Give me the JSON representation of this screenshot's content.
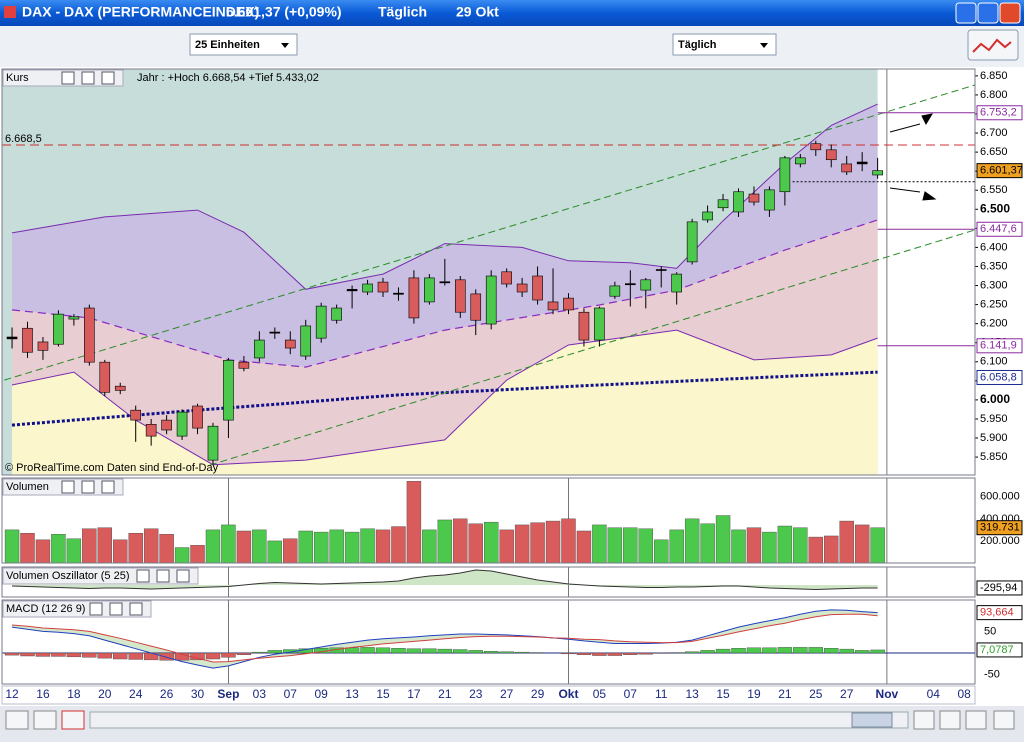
{
  "window": {
    "title": "DAX - DAX (PERFORMANCEINDEX)",
    "quote": "6.601,37 (+0,09%)",
    "period": "Täglich",
    "date": "29 Okt"
  },
  "toolbar": {
    "units": "25 Einheiten",
    "interval": "Täglich"
  },
  "chart_data": [
    {
      "type": "candlestick",
      "title": "Kurs",
      "subtitle": "Jahr : +Hoch 6.668,54 +Tief 5.433,02",
      "annotation": "© ProRealTime.com  Daten sind End-of-Day",
      "colors": {
        "up": "#4cc84c",
        "down": "#d85c5c"
      },
      "candles": [
        [
          6160,
          6190,
          6135,
          6165
        ],
        [
          6188,
          6205,
          6110,
          6125
        ],
        [
          6152,
          6165,
          6105,
          6130
        ],
        [
          6146,
          6235,
          6140,
          6225
        ],
        [
          6212,
          6225,
          6195,
          6218
        ],
        [
          6241,
          6250,
          6090,
          6099
        ],
        [
          6099,
          6105,
          6010,
          6020
        ],
        [
          6036,
          6045,
          6015,
          6025
        ],
        [
          5973,
          5985,
          5890,
          5947
        ],
        [
          5936,
          5950,
          5880,
          5905
        ],
        [
          5947,
          5960,
          5910,
          5921
        ],
        [
          5905,
          5975,
          5895,
          5968
        ],
        [
          5984,
          5990,
          5910,
          5926
        ],
        [
          5842,
          5940,
          5830,
          5931
        ],
        [
          5947,
          6110,
          5900,
          6104
        ],
        [
          6099,
          6115,
          6075,
          6083
        ],
        [
          6110,
          6180,
          6100,
          6157
        ],
        [
          6175,
          6190,
          6160,
          6178
        ],
        [
          6157,
          6180,
          6120,
          6136
        ],
        [
          6115,
          6210,
          6105,
          6194
        ],
        [
          6162,
          6255,
          6150,
          6246
        ],
        [
          6209,
          6250,
          6200,
          6241
        ],
        [
          6286,
          6300,
          6240,
          6290
        ],
        [
          6283,
          6315,
          6275,
          6304
        ],
        [
          6309,
          6320,
          6270,
          6283
        ],
        [
          6280,
          6295,
          6260,
          6277
        ],
        [
          6320,
          6340,
          6200,
          6215
        ],
        [
          6257,
          6330,
          6250,
          6320
        ],
        [
          6307,
          6370,
          6300,
          6310
        ],
        [
          6315,
          6325,
          6215,
          6230
        ],
        [
          6278,
          6290,
          6170,
          6209
        ],
        [
          6199,
          6340,
          6185,
          6325
        ],
        [
          6336,
          6345,
          6295,
          6304
        ],
        [
          6304,
          6320,
          6270,
          6283
        ],
        [
          6325,
          6350,
          6250,
          6262
        ],
        [
          6257,
          6345,
          6225,
          6236
        ],
        [
          6267,
          6280,
          6225,
          6236
        ],
        [
          6230,
          6240,
          6140,
          6157
        ],
        [
          6157,
          6245,
          6140,
          6241
        ],
        [
          6272,
          6310,
          6265,
          6299
        ],
        [
          6302,
          6340,
          6245,
          6305
        ],
        [
          6288,
          6320,
          6240,
          6315
        ],
        [
          6340,
          6350,
          6295,
          6342
        ],
        [
          6283,
          6335,
          6250,
          6330
        ],
        [
          6362,
          6475,
          6355,
          6467
        ],
        [
          6472,
          6510,
          6465,
          6493
        ],
        [
          6504,
          6540,
          6495,
          6525
        ],
        [
          6493,
          6555,
          6480,
          6546
        ],
        [
          6540,
          6560,
          6510,
          6519
        ],
        [
          6498,
          6560,
          6480,
          6551
        ],
        [
          6546,
          6640,
          6510,
          6635
        ],
        [
          6619,
          6645,
          6610,
          6635
        ],
        [
          6672,
          6680,
          6640,
          6656
        ],
        [
          6656,
          6670,
          6610,
          6630
        ],
        [
          6619,
          6640,
          6590,
          6598
        ],
        [
          6624,
          6650,
          6600,
          6619
        ],
        [
          6590,
          6635,
          6580,
          6601.37
        ]
      ],
      "bands": {
        "upper": {
          "x": [
            0,
            6,
            12,
            15,
            19,
            24,
            28,
            33,
            36,
            40,
            43,
            46,
            50,
            53,
            56
          ],
          "values": [
            6438,
            6480,
            6498,
            6440,
            6290,
            6330,
            6410,
            6400,
            6365,
            6360,
            6345,
            6470,
            6620,
            6720,
            6776
          ]
        },
        "middle": {
          "x": [
            0,
            5,
            14,
            19,
            28,
            38,
            43,
            50,
            56
          ],
          "values": [
            6236,
            6215,
            6105,
            6086,
            6183,
            6249,
            6288,
            6393,
            6472
          ]
        },
        "lower": {
          "x": [
            0,
            4,
            8,
            13,
            19,
            28,
            32,
            36,
            43,
            48,
            53,
            56
          ],
          "values": [
            6039,
            6073,
            5947,
            5830,
            5842,
            5895,
            6052,
            6144,
            6183,
            6105,
            6118,
            6162
          ]
        },
        "average": {
          "x": [
            0,
            12,
            25,
            38,
            56
          ],
          "values": [
            5934,
            5973,
            6013,
            6039,
            6073
          ]
        }
      },
      "channels": [
        {
          "x": [
            -0.5,
            62.3
          ],
          "values": [
            6052,
            6826
          ]
        },
        {
          "x": [
            12.8,
            62.3
          ],
          "values": [
            5829,
            6446
          ]
        }
      ],
      "dotted_line": {
        "x": [
          50.5,
          62.3
        ],
        "values": [
          6572,
          6572
        ]
      },
      "hline": {
        "value": 6668.5,
        "label": "6.668,5",
        "color": "#d03030"
      },
      "levels": [
        {
          "value": 6753.2,
          "label": "6.753,2",
          "color": "#8a2aa0",
          "line": true
        },
        {
          "value": 6447.6,
          "label": "6.447,6",
          "color": "#8a2aa0",
          "line": true
        },
        {
          "value": 6141.9,
          "label": "6.141,9",
          "color": "#8a2aa0",
          "line": true
        },
        {
          "value": 6058.8,
          "label": "6.058,8",
          "color": "#1a2a90",
          "line": false
        }
      ],
      "last": {
        "value": 6601.37,
        "label": "6.601,37",
        "color": "#f0a020"
      },
      "ylim": [
        5803,
        6868
      ],
      "yticks": [
        {
          "value": 5850,
          "label": "5.850"
        },
        {
          "value": 5900,
          "label": "5.900"
        },
        {
          "value": 5950,
          "label": "5.950"
        },
        {
          "value": 6000,
          "label": "6.000"
        },
        {
          "value": 6050,
          "label": "6.050"
        },
        {
          "value": 6100,
          "label": "6.100"
        },
        {
          "value": 6150,
          "label": "6.150"
        },
        {
          "value": 6200,
          "label": "6.200"
        },
        {
          "value": 6250,
          "label": "6.250"
        },
        {
          "value": 6300,
          "label": "6.300"
        },
        {
          "value": 6350,
          "label": "6.350"
        },
        {
          "value": 6400,
          "label": "6.400"
        },
        {
          "value": 6450,
          "label": "6.450"
        },
        {
          "value": 6500,
          "label": "6.500"
        },
        {
          "value": 6550,
          "label": "6.550"
        },
        {
          "value": 6600,
          "label": "6.600"
        },
        {
          "value": 6650,
          "label": "6.650"
        },
        {
          "value": 6700,
          "label": "6.700"
        },
        {
          "value": 6750,
          "label": "6.750"
        },
        {
          "value": 6800,
          "label": "6.800"
        },
        {
          "value": 6850,
          "label": "6.850"
        }
      ]
    },
    {
      "type": "bar",
      "title": "Volumen",
      "values": [
        300000,
        270000,
        210000,
        260000,
        220000,
        310000,
        320000,
        210000,
        270000,
        310000,
        260000,
        140000,
        160000,
        300000,
        345000,
        290000,
        300000,
        200000,
        220000,
        290000,
        280000,
        300000,
        280000,
        310000,
        300000,
        330000,
        740000,
        300000,
        390000,
        400000,
        355000,
        370000,
        300000,
        345000,
        365000,
        380000,
        400000,
        290000,
        345000,
        320000,
        320000,
        310000,
        210000,
        300000,
        400000,
        355000,
        430000,
        300000,
        320000,
        280000,
        335000,
        320000,
        235000,
        245000,
        380000,
        345000,
        319731
      ],
      "ylim": [
        0,
        770000
      ],
      "yticks": [
        {
          "value": 200000,
          "label": "200.000"
        },
        {
          "value": 400000,
          "label": "400.000"
        },
        {
          "value": 600000,
          "label": "600.000"
        }
      ],
      "last": {
        "value": 319731,
        "label": "319.731",
        "color": "#f0a020"
      }
    },
    {
      "type": "line",
      "title": "Volumen Oszillator (5 25)",
      "color": "#333333",
      "values": [
        -100,
        -150,
        -200,
        -250,
        -300,
        -350,
        -300,
        -300,
        -350,
        -400,
        -350,
        -300,
        -250,
        -200,
        -150,
        0,
        150,
        250,
        200,
        150,
        100,
        150,
        200,
        250,
        300,
        400,
        700,
        900,
        1000,
        1200,
        1500,
        1400,
        1100,
        800,
        500,
        300,
        100,
        0,
        -100,
        -150,
        -200,
        -250,
        -250,
        -200,
        -200,
        -150,
        -100,
        -100,
        -200,
        -300,
        -350,
        -400,
        -450,
        -400,
        -350,
        -300,
        -295.94
      ],
      "ylim": [
        -1200,
        1800
      ],
      "last": {
        "value": -295.94,
        "label": "-295,94",
        "color": "#ffffff"
      }
    },
    {
      "type": "macd",
      "title": "MACD (12 26 9)",
      "series": [
        {
          "color": "#2040c0",
          "values": [
            60,
            55,
            50,
            48,
            45,
            40,
            30,
            20,
            10,
            0,
            -10,
            -20,
            -28,
            -35,
            -30,
            -20,
            -10,
            -3,
            2,
            8,
            14,
            20,
            25,
            30,
            33,
            35,
            37,
            40,
            42,
            44,
            44,
            43,
            42,
            40,
            38,
            35,
            32,
            28,
            25,
            22,
            22,
            22,
            23,
            25,
            30,
            40,
            50,
            60,
            68,
            75,
            82,
            90,
            97,
            100,
            99,
            96,
            93.664
          ]
        },
        {
          "color": "#d04040",
          "values": [
            65,
            62,
            58,
            56,
            54,
            50,
            42,
            34,
            25,
            16,
            7,
            -3,
            -12,
            -21,
            -20,
            -16,
            -12,
            -9,
            -6,
            -2,
            3,
            8,
            13,
            17,
            21,
            24,
            27,
            30,
            33,
            36,
            38,
            39,
            39,
            38,
            37,
            35,
            34,
            32,
            31,
            28,
            26,
            25,
            24,
            24,
            27,
            34,
            41,
            49,
            56,
            63,
            69,
            77,
            84,
            89,
            90,
            90,
            86.59
          ]
        }
      ],
      "histogram": {
        "values": [
          -5,
          -7,
          -8,
          -8,
          -9,
          -10,
          -12,
          -14,
          -15,
          -16,
          -17,
          -17,
          -16,
          -14,
          -10,
          -4,
          2,
          6,
          8,
          10,
          11,
          12,
          12,
          13,
          12,
          11,
          10,
          10,
          9,
          8,
          6,
          4,
          3,
          2,
          1,
          0,
          -2,
          -4,
          -6,
          -6,
          -4,
          -3,
          -1,
          1,
          3,
          6,
          9,
          11,
          12,
          12,
          13,
          13,
          13,
          11,
          9,
          6,
          7.0787
        ],
        "up": "#4cc84c",
        "down": "#d85c5c"
      },
      "ylim": [
        -72,
        123
      ],
      "yticks": [
        50,
        -50
      ],
      "last": [
        {
          "value": 93.664,
          "label": "93,664",
          "color": "#d03030"
        },
        {
          "value": 7.0787,
          "label": "7,0787",
          "color": "#30a030"
        }
      ],
      "xlim": [
        -0.65,
        62.3
      ],
      "xticks": [
        {
          "value": 0,
          "label": "12"
        },
        {
          "value": 2,
          "label": "16"
        },
        {
          "value": 4,
          "label": "18"
        },
        {
          "value": 6,
          "label": "20"
        },
        {
          "value": 8,
          "label": "24"
        },
        {
          "value": 10,
          "label": "26"
        },
        {
          "value": 12,
          "label": "30"
        },
        {
          "value": 14,
          "label": "Sep",
          "major": true
        },
        {
          "value": 16,
          "label": "03"
        },
        {
          "value": 18,
          "label": "07"
        },
        {
          "value": 20,
          "label": "09"
        },
        {
          "value": 22,
          "label": "13"
        },
        {
          "value": 24,
          "label": "15"
        },
        {
          "value": 26,
          "label": "17"
        },
        {
          "value": 28,
          "label": "21"
        },
        {
          "value": 30,
          "label": "23"
        },
        {
          "value": 32,
          "label": "27"
        },
        {
          "value": 34,
          "label": "29"
        },
        {
          "value": 36,
          "label": "Okt",
          "major": true
        },
        {
          "value": 38,
          "label": "05"
        },
        {
          "value": 40,
          "label": "07"
        },
        {
          "value": 42,
          "label": "11"
        },
        {
          "value": 44,
          "label": "13"
        },
        {
          "value": 46,
          "label": "15"
        },
        {
          "value": 48,
          "label": "19"
        },
        {
          "value": 50,
          "label": "21"
        },
        {
          "value": 52,
          "label": "25"
        },
        {
          "value": 54,
          "label": "27"
        },
        {
          "value": 56.6,
          "label": "Nov",
          "major": true
        },
        {
          "value": 59.6,
          "label": "04"
        },
        {
          "value": 61.6,
          "label": "08"
        }
      ]
    }
  ]
}
